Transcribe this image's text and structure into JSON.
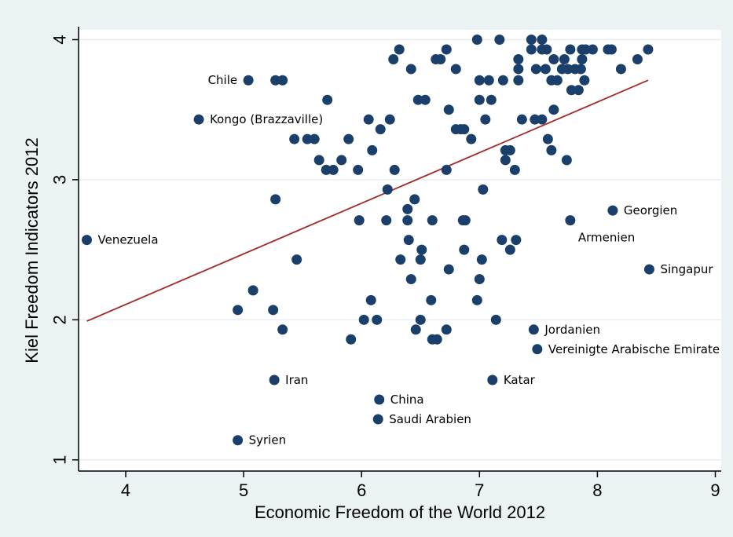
{
  "chart_data": {
    "type": "scatter",
    "xlabel": "Economic Freedom of the World 2012",
    "ylabel": "Kiel Freedom Indicators 2012",
    "xlim": [
      3.6,
      9.05
    ],
    "ylim": [
      0.92,
      4.07
    ],
    "xticks": [
      4,
      5,
      6,
      7,
      8,
      9
    ],
    "yticks": [
      1,
      2,
      3,
      4
    ],
    "grid": true,
    "colors": {
      "point": "#1a3f6a",
      "fit_line": "#a52a2a",
      "plot_bg": "#ffffff",
      "outer_bg": "#eaf2f3",
      "grid": "#e6eef0"
    },
    "fit_line": {
      "x": [
        3.67,
        8.43
      ],
      "y": [
        1.99,
        3.71
      ]
    },
    "labeled_points": [
      {
        "label": "Chile",
        "x": 5.04,
        "y": 3.71
      },
      {
        "label": "Kongo (Brazzaville)",
        "x": 4.62,
        "y": 3.43
      },
      {
        "label": "Venezuela",
        "x": 3.67,
        "y": 2.57
      },
      {
        "label": "Georgien",
        "x": 8.13,
        "y": 2.78
      },
      {
        "label": "Armenien",
        "x": 7.77,
        "y": 2.71
      },
      {
        "label": "Singapur",
        "x": 8.44,
        "y": 2.36
      },
      {
        "label": "Jordanien",
        "x": 7.46,
        "y": 1.93
      },
      {
        "label": "Vereinigte Arabische Emirate",
        "x": 7.49,
        "y": 1.79
      },
      {
        "label": "Iran",
        "x": 5.26,
        "y": 1.57
      },
      {
        "label": "Katar",
        "x": 7.11,
        "y": 1.57
      },
      {
        "label": "China",
        "x": 6.15,
        "y": 1.43
      },
      {
        "label": "Saudi Arabien",
        "x": 6.14,
        "y": 1.29
      },
      {
        "label": "Syrien",
        "x": 4.95,
        "y": 1.14
      }
    ],
    "points": [
      [
        6.98,
        4.0
      ],
      [
        7.17,
        4.0
      ],
      [
        7.44,
        4.0
      ],
      [
        7.53,
        4.0
      ],
      [
        6.32,
        3.93
      ],
      [
        6.72,
        3.93
      ],
      [
        7.44,
        3.93
      ],
      [
        7.53,
        3.93
      ],
      [
        7.57,
        3.93
      ],
      [
        7.77,
        3.93
      ],
      [
        7.87,
        3.93
      ],
      [
        7.9,
        3.93
      ],
      [
        7.96,
        3.93
      ],
      [
        8.09,
        3.93
      ],
      [
        8.12,
        3.93
      ],
      [
        8.43,
        3.93
      ],
      [
        6.27,
        3.86
      ],
      [
        6.63,
        3.86
      ],
      [
        6.67,
        3.86
      ],
      [
        7.33,
        3.86
      ],
      [
        7.63,
        3.86
      ],
      [
        7.72,
        3.86
      ],
      [
        7.87,
        3.86
      ],
      [
        8.34,
        3.86
      ],
      [
        6.42,
        3.79
      ],
      [
        6.8,
        3.79
      ],
      [
        7.33,
        3.79
      ],
      [
        7.48,
        3.79
      ],
      [
        7.56,
        3.79
      ],
      [
        7.7,
        3.79
      ],
      [
        7.75,
        3.79
      ],
      [
        7.81,
        3.79
      ],
      [
        7.86,
        3.79
      ],
      [
        8.2,
        3.79
      ],
      [
        5.27,
        3.71
      ],
      [
        5.33,
        3.71
      ],
      [
        7.0,
        3.71
      ],
      [
        7.08,
        3.71
      ],
      [
        7.2,
        3.71
      ],
      [
        7.33,
        3.71
      ],
      [
        7.61,
        3.71
      ],
      [
        7.66,
        3.71
      ],
      [
        7.89,
        3.71
      ],
      [
        7.78,
        3.64
      ],
      [
        7.84,
        3.64
      ],
      [
        5.71,
        3.57
      ],
      [
        6.48,
        3.57
      ],
      [
        6.54,
        3.57
      ],
      [
        7.0,
        3.57
      ],
      [
        7.1,
        3.57
      ],
      [
        6.74,
        3.5
      ],
      [
        7.63,
        3.5
      ],
      [
        6.06,
        3.43
      ],
      [
        6.24,
        3.43
      ],
      [
        7.05,
        3.43
      ],
      [
        7.36,
        3.43
      ],
      [
        7.47,
        3.43
      ],
      [
        7.53,
        3.43
      ],
      [
        6.16,
        3.36
      ],
      [
        6.8,
        3.36
      ],
      [
        6.84,
        3.36
      ],
      [
        6.87,
        3.36
      ],
      [
        5.43,
        3.29
      ],
      [
        5.54,
        3.29
      ],
      [
        5.6,
        3.29
      ],
      [
        5.89,
        3.29
      ],
      [
        6.93,
        3.29
      ],
      [
        7.58,
        3.29
      ],
      [
        6.09,
        3.21
      ],
      [
        7.22,
        3.21
      ],
      [
        7.26,
        3.21
      ],
      [
        7.61,
        3.21
      ],
      [
        5.64,
        3.14
      ],
      [
        5.83,
        3.14
      ],
      [
        7.22,
        3.14
      ],
      [
        7.74,
        3.14
      ],
      [
        5.7,
        3.07
      ],
      [
        5.76,
        3.07
      ],
      [
        5.97,
        3.07
      ],
      [
        6.28,
        3.07
      ],
      [
        6.72,
        3.07
      ],
      [
        7.3,
        3.07
      ],
      [
        6.22,
        2.93
      ],
      [
        7.03,
        2.93
      ],
      [
        5.27,
        2.86
      ],
      [
        6.45,
        2.86
      ],
      [
        6.39,
        2.79
      ],
      [
        5.98,
        2.71
      ],
      [
        6.21,
        2.71
      ],
      [
        6.39,
        2.71
      ],
      [
        6.6,
        2.71
      ],
      [
        6.86,
        2.71
      ],
      [
        6.88,
        2.71
      ],
      [
        6.4,
        2.57
      ],
      [
        7.19,
        2.57
      ],
      [
        7.31,
        2.57
      ],
      [
        6.51,
        2.5
      ],
      [
        6.87,
        2.5
      ],
      [
        7.26,
        2.5
      ],
      [
        5.45,
        2.43
      ],
      [
        6.33,
        2.43
      ],
      [
        6.5,
        2.43
      ],
      [
        7.02,
        2.43
      ],
      [
        6.74,
        2.36
      ],
      [
        6.42,
        2.29
      ],
      [
        7.0,
        2.29
      ],
      [
        5.08,
        2.21
      ],
      [
        6.08,
        2.14
      ],
      [
        6.59,
        2.14
      ],
      [
        6.98,
        2.14
      ],
      [
        4.95,
        2.07
      ],
      [
        5.25,
        2.07
      ],
      [
        6.02,
        2.0
      ],
      [
        6.13,
        2.0
      ],
      [
        6.5,
        2.0
      ],
      [
        7.14,
        2.0
      ],
      [
        5.33,
        1.93
      ],
      [
        6.46,
        1.93
      ],
      [
        6.72,
        1.93
      ],
      [
        5.91,
        1.86
      ],
      [
        6.6,
        1.86
      ],
      [
        6.64,
        1.86
      ]
    ]
  }
}
